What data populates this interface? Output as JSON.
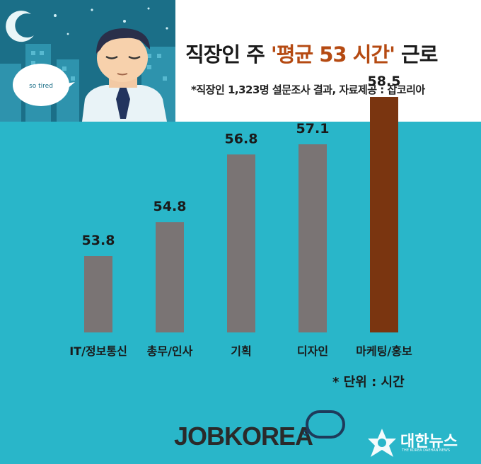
{
  "header": {
    "title_prefix": "직장인 주 ",
    "title_highlight": "'평균 53 시간'",
    "title_suffix": " 근로",
    "subtitle": "*직장인 1,323명 설문조사 결과, 자료제공 : 잡코리아",
    "speech_bubble": "so tired"
  },
  "unit_note": "* 단위 : 시간",
  "brands": {
    "jobkorea": "JOBKOREA",
    "daehan": "대한뉴스",
    "daehan_sub": "THE KOREA DAEHAN NEWS",
    "daehan_emblem_text": "대한뉴스"
  },
  "colors": {
    "background": "#29b6c9",
    "bar_default": "#7a7474",
    "bar_highlight": "#7a3510",
    "title_highlight": "#b54a12",
    "night_sky": "#1b6f88"
  },
  "icons": [
    "moon-icon",
    "star-icon",
    "city-skyline",
    "tired-man-illustration",
    "speech-bubble",
    "jobkorea-logo-ring",
    "daehan-emblem"
  ],
  "chart_data": {
    "type": "bar",
    "title": "직장인 주 '평균 53 시간' 근로",
    "ylabel": "",
    "xlabel": "",
    "unit": "시간",
    "categories": [
      "IT/정보통신",
      "총무/인사",
      "기획",
      "디자인",
      "마케팅/홍보"
    ],
    "values": [
      53.8,
      54.8,
      56.8,
      57.1,
      58.5
    ],
    "data_labels": [
      "53.8",
      "54.8",
      "56.8",
      "57.1",
      "58.5"
    ],
    "highlight_index": 4,
    "grid": false,
    "legend": "none"
  }
}
